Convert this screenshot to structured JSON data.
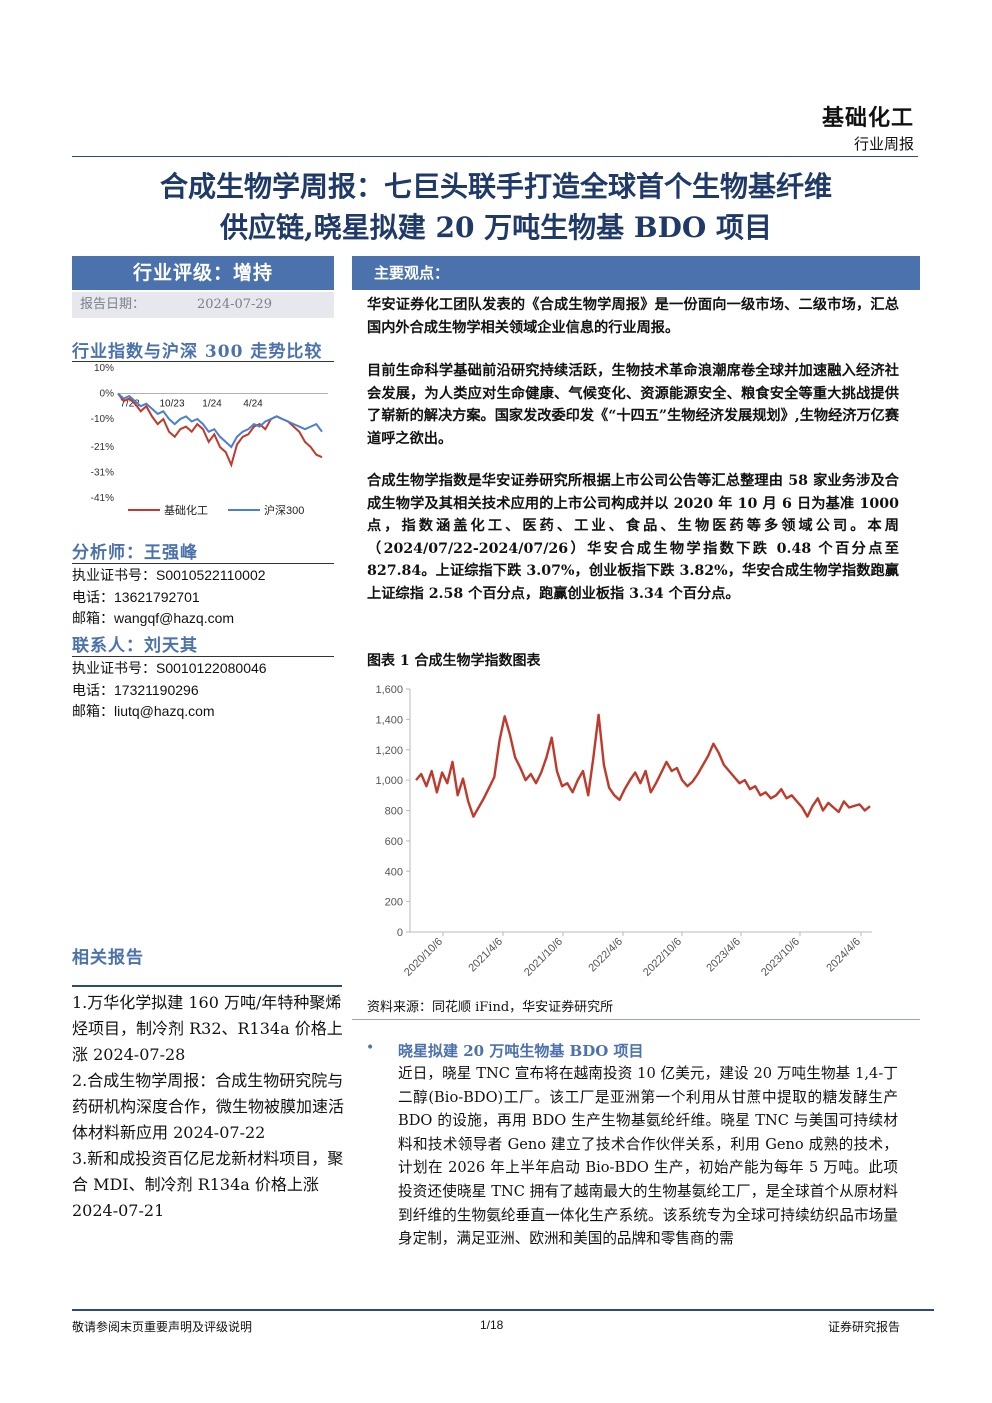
{
  "header": {
    "industry": "基础化工",
    "report_type": "行业周报",
    "title_line1": "合成生物学周报：七巨头联手打造全球首个生物基纤维",
    "title_line2": "供应链,晓星拟建 20 万吨生物基 BDO 项目"
  },
  "left": {
    "rating": "行业评级：增持",
    "date_label": "报告日期：",
    "date_value": "2024-07-29",
    "perf_title": "行业指数与沪深 300 走势比较",
    "analyst_title": "分析师：王强峰",
    "analyst_lines": [
      "执业证书号：S0010522110002",
      "电话：13621792701",
      "邮箱：wangqf@hazq.com"
    ],
    "contact_title": "联系人：刘天其",
    "contact_lines": [
      "执业证书号：S0010122080046",
      "电话：17321190296",
      "邮箱：liutq@hazq.com"
    ],
    "related_title": "相关报告",
    "related": [
      "1.万华化学拟建 160 万吨/年特种聚烯烃项目，制冷剂 R32、R134a 价格上涨 2024-07-28",
      "2.合成生物学周报：合成生物研究院与药研机构深度合作，微生物被膜加速活体材料新应用 2024-07-22",
      "3.新和成投资百亿尼龙新材料项目，聚合 MDI、制冷剂 R134a 价格上涨 2024-07-21"
    ]
  },
  "right": {
    "points_title": "主要观点：",
    "p1": "华安证券化工团队发表的《合成生物学周报》是一份面向一级市场、二级市场，汇总国内外合成生物学相关领域企业信息的行业周报。",
    "p2": "目前生命科学基础前沿研究持续活跃，生物技术革命浪潮席卷全球并加速融入经济社会发展，为人类应对生命健康、气候变化、资源能源安全、粮食安全等重大挑战提供了崭新的解决方案。国家发改委印发《“十四五”生物经济发展规划》,生物经济万亿赛道呼之欲出。",
    "p3": "合成生物学指数是华安证券研究所根据上市公司公告等汇总整理由 58 家业务涉及合成生物学及其相关技术应用的上市公司构成并以 2020 年 10 月 6 日为基准 1000 点，指数涵盖化工、医药、工业、食品、生物医药等多领域公司。本周（2024/07/22-2024/07/26）华安合成生物学指数下跌 0.48 个百分点至 827.84。上证综指下跌 3.07%，创业板指下跌 3.82%，华安合成生物学指数跑赢上证综指 2.58 个百分点，跑赢创业板指 3.34 个百分点。",
    "fig_title": "图表 1 合成生物学指数图表",
    "fig_source": "资料来源：同花顺 iFind，华安证券研究所",
    "bullet_title": "晓星拟建 20 万吨生物基 BDO 项目",
    "bullet_body": "近日，晓星 TNC 宣布将在越南投资 10 亿美元，建设 20 万吨生物基 1,4-丁二醇(Bio-BDO)工厂。该工厂是亚洲第一个利用从甘蔗中提取的糖发酵生产 BDO 的设施，再用 BDO 生产生物基氨纶纤维。晓星 TNC 与美国可持续材料和技术领导者 Geno 建立了技术合作伙伴关系，利用 Geno 成熟的技术，计划在 2026 年上半年启动 Bio-BDO 生产，初始产能为每年 5 万吨。此项投资还使晓星 TNC 拥有了越南最大的生物基氨纶工厂，是全球首个从原材料到纤维的生物氨纶垂直一体化生产系统。该系统专为全球可持续纺织品市场量身定制，满足亚洲、欧洲和美国的品牌和零售商的需"
  },
  "footer": {
    "left": "敬请参阅末页重要声明及评级说明",
    "page": "1/18",
    "right": "证券研究报告"
  },
  "colors": {
    "accent": "#4b72ad",
    "navy": "#1f3a68",
    "red_series": "#c0392b",
    "blue_series": "#4a7fd4"
  },
  "chart_data": [
    {
      "type": "line",
      "title": "",
      "x_ticks": [
        "7/23",
        "10/23",
        "1/24",
        "4/24"
      ],
      "y_ticks": [
        "10%",
        "0%",
        "-10%",
        "-21%",
        "-31%",
        "-41%"
      ],
      "ylim": [
        -41,
        10
      ],
      "legend": "bottom",
      "series": [
        {
          "name": "基础化工",
          "color": "#c0392b",
          "values": [
            0,
            -3,
            -2,
            -4,
            -7,
            -5,
            -9,
            -12,
            -10,
            -15,
            -17,
            -14,
            -13,
            -15,
            -12,
            -14,
            -19,
            -16,
            -21,
            -23,
            -28,
            -20,
            -17,
            -16,
            -13,
            -12,
            -14,
            -10,
            -9,
            -10,
            -11,
            -13,
            -15,
            -19,
            -21,
            -24,
            -25
          ]
        },
        {
          "name": "沪深300",
          "color": "#4a7fd4",
          "values": [
            0,
            -2,
            -1,
            -3,
            -5,
            -4,
            -6,
            -8,
            -7,
            -10,
            -12,
            -10,
            -9,
            -11,
            -10,
            -12,
            -15,
            -14,
            -17,
            -19,
            -21,
            -17,
            -15,
            -14,
            -12,
            -13,
            -11,
            -10,
            -9,
            -10,
            -11,
            -12,
            -13,
            -14,
            -13,
            -12,
            -15
          ]
        }
      ]
    },
    {
      "type": "line",
      "title": "",
      "x_ticks": [
        "2020/10/6",
        "2021/4/6",
        "2021/10/6",
        "2022/4/6",
        "2022/10/6",
        "2023/4/6",
        "2023/10/6",
        "2024/4/6"
      ],
      "y_ticks": [
        0,
        200,
        400,
        600,
        800,
        1000,
        1200,
        1400,
        1600
      ],
      "ylim": [
        0,
        1600
      ],
      "series": [
        {
          "name": "",
          "values": [
            1000,
            1040,
            960,
            1060,
            920,
            1050,
            980,
            1120,
            900,
            1010,
            860,
            760,
            820,
            880,
            950,
            1020,
            1260,
            1420,
            1300,
            1150,
            1080,
            1000,
            1040,
            980,
            1050,
            1150,
            1280,
            1060,
            960,
            980,
            920,
            1000,
            1060,
            900,
            1150,
            1430,
            1100,
            950,
            900,
            870,
            940,
            1000,
            1050,
            980,
            1060,
            920,
            980,
            1050,
            1120,
            1060,
            1080,
            1000,
            960,
            990,
            1040,
            1100,
            1160,
            1240,
            1180,
            1100,
            1060,
            1020,
            980,
            1000,
            940,
            960,
            900,
            920,
            880,
            900,
            940,
            880,
            900,
            860,
            820,
            760,
            830,
            880,
            800,
            850,
            820,
            790,
            860,
            820,
            830,
            840,
            800,
            828
          ]
        }
      ]
    }
  ]
}
